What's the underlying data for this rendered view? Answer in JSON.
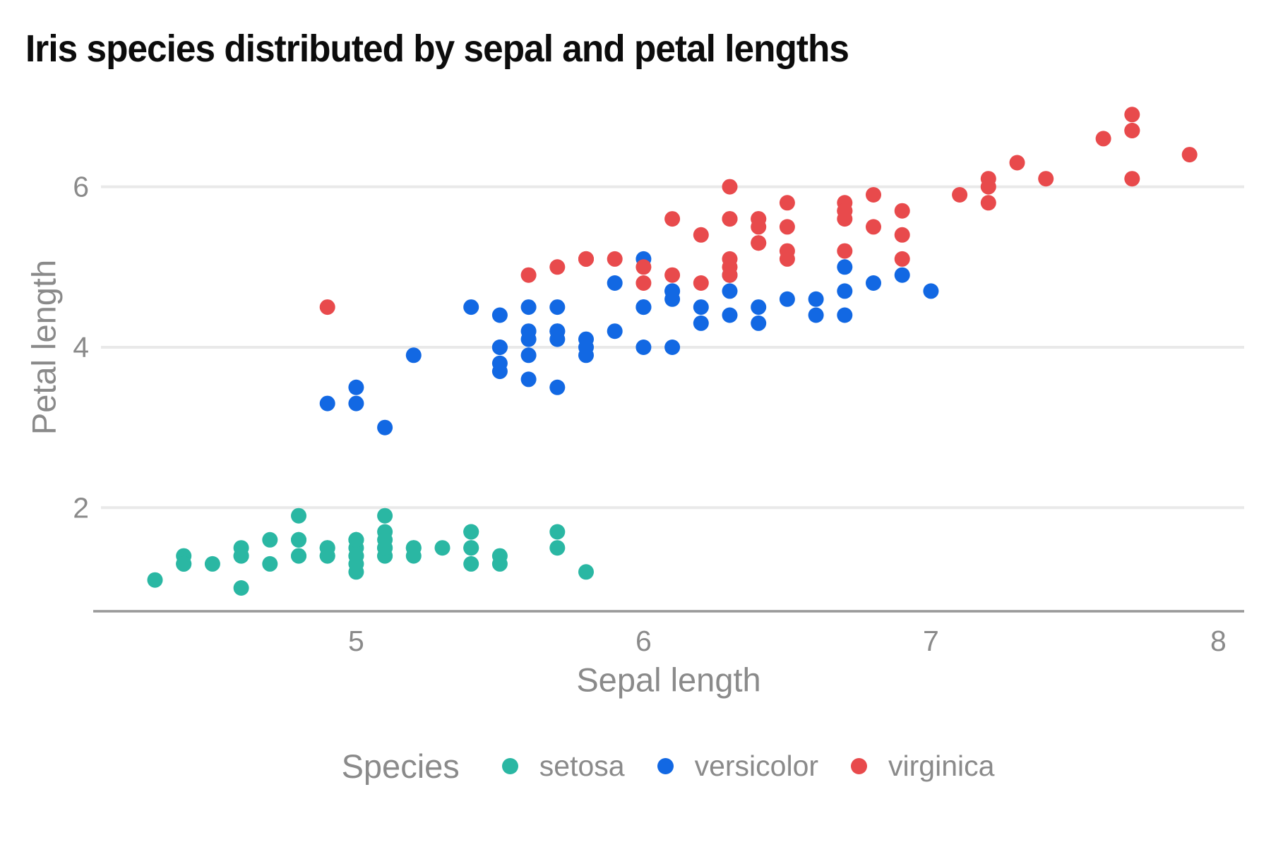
{
  "chart": {
    "title": "Iris species distributed by sepal and petal lengths",
    "xlabel": "Sepal length",
    "ylabel": "Petal length",
    "legend_title": "Species"
  },
  "colors": {
    "background": "#ffffff",
    "title_text": "#0c0c0c",
    "axis_text": "#8a8a8a",
    "gridline": "#e9e9e9",
    "axis_line": "#999999",
    "setosa": "#2ab7a3",
    "versicolor": "#1268e3",
    "virginica": "#e84a4c"
  },
  "chart_data": {
    "type": "scatter",
    "title": "Iris species distributed by sepal and petal lengths",
    "xlabel": "Sepal length",
    "ylabel": "Petal length",
    "x_ticks": [
      5,
      6,
      7,
      8
    ],
    "y_ticks": [
      2,
      4,
      6
    ],
    "xlim": [
      4.08,
      8.09
    ],
    "ylim": [
      0.71,
      7.14
    ],
    "grid": "horizontal-only",
    "legend_position": "bottom-center",
    "legend_title": "Species",
    "series": [
      {
        "name": "setosa",
        "color": "#2ab7a3",
        "points": [
          [
            5.1,
            1.4
          ],
          [
            4.9,
            1.4
          ],
          [
            4.7,
            1.3
          ],
          [
            4.6,
            1.5
          ],
          [
            5.0,
            1.4
          ],
          [
            5.4,
            1.7
          ],
          [
            4.6,
            1.4
          ],
          [
            5.0,
            1.5
          ],
          [
            4.4,
            1.4
          ],
          [
            4.9,
            1.5
          ],
          [
            5.4,
            1.5
          ],
          [
            4.8,
            1.6
          ],
          [
            4.8,
            1.4
          ],
          [
            4.3,
            1.1
          ],
          [
            5.8,
            1.2
          ],
          [
            5.7,
            1.5
          ],
          [
            5.4,
            1.3
          ],
          [
            5.1,
            1.4
          ],
          [
            5.7,
            1.7
          ],
          [
            5.1,
            1.5
          ],
          [
            5.4,
            1.7
          ],
          [
            5.1,
            1.5
          ],
          [
            4.6,
            1.0
          ],
          [
            5.1,
            1.7
          ],
          [
            4.8,
            1.9
          ],
          [
            5.0,
            1.6
          ],
          [
            5.0,
            1.6
          ],
          [
            5.2,
            1.5
          ],
          [
            5.2,
            1.4
          ],
          [
            4.7,
            1.6
          ],
          [
            4.8,
            1.6
          ],
          [
            5.4,
            1.5
          ],
          [
            5.2,
            1.5
          ],
          [
            5.5,
            1.4
          ],
          [
            4.9,
            1.5
          ],
          [
            5.0,
            1.2
          ],
          [
            5.5,
            1.3
          ],
          [
            4.9,
            1.4
          ],
          [
            4.4,
            1.3
          ],
          [
            5.1,
            1.5
          ],
          [
            5.0,
            1.3
          ],
          [
            4.5,
            1.3
          ],
          [
            4.4,
            1.3
          ],
          [
            5.0,
            1.6
          ],
          [
            5.1,
            1.9
          ],
          [
            4.8,
            1.4
          ],
          [
            5.1,
            1.6
          ],
          [
            4.6,
            1.4
          ],
          [
            5.3,
            1.5
          ],
          [
            5.0,
            1.4
          ]
        ]
      },
      {
        "name": "versicolor",
        "color": "#1268e3",
        "points": [
          [
            7.0,
            4.7
          ],
          [
            6.4,
            4.5
          ],
          [
            6.9,
            4.9
          ],
          [
            5.5,
            4.0
          ],
          [
            6.5,
            4.6
          ],
          [
            5.7,
            4.5
          ],
          [
            6.3,
            4.7
          ],
          [
            4.9,
            3.3
          ],
          [
            6.6,
            4.6
          ],
          [
            5.2,
            3.9
          ],
          [
            5.0,
            3.5
          ],
          [
            5.9,
            4.2
          ],
          [
            6.0,
            4.0
          ],
          [
            6.1,
            4.7
          ],
          [
            5.6,
            3.6
          ],
          [
            6.7,
            4.4
          ],
          [
            5.6,
            4.5
          ],
          [
            5.8,
            4.1
          ],
          [
            6.2,
            4.5
          ],
          [
            5.6,
            3.9
          ],
          [
            5.9,
            4.8
          ],
          [
            6.1,
            4.0
          ],
          [
            6.3,
            4.9
          ],
          [
            6.1,
            4.7
          ],
          [
            6.4,
            4.3
          ],
          [
            6.6,
            4.4
          ],
          [
            6.8,
            4.8
          ],
          [
            6.7,
            5.0
          ],
          [
            6.0,
            4.5
          ],
          [
            5.7,
            3.5
          ],
          [
            5.5,
            3.8
          ],
          [
            5.5,
            3.7
          ],
          [
            5.8,
            3.9
          ],
          [
            6.0,
            5.1
          ],
          [
            5.4,
            4.5
          ],
          [
            6.0,
            4.5
          ],
          [
            6.7,
            4.7
          ],
          [
            6.3,
            4.4
          ],
          [
            5.6,
            4.1
          ],
          [
            5.5,
            4.0
          ],
          [
            5.5,
            4.4
          ],
          [
            6.1,
            4.6
          ],
          [
            5.8,
            4.0
          ],
          [
            5.0,
            3.3
          ],
          [
            5.6,
            4.2
          ],
          [
            5.7,
            4.2
          ],
          [
            5.7,
            4.2
          ],
          [
            6.2,
            4.3
          ],
          [
            5.1,
            3.0
          ],
          [
            5.7,
            4.1
          ]
        ]
      },
      {
        "name": "virginica",
        "color": "#e84a4c",
        "points": [
          [
            6.3,
            6.0
          ],
          [
            5.8,
            5.1
          ],
          [
            7.1,
            5.9
          ],
          [
            6.3,
            5.6
          ],
          [
            6.5,
            5.8
          ],
          [
            7.6,
            6.6
          ],
          [
            4.9,
            4.5
          ],
          [
            7.3,
            6.3
          ],
          [
            6.7,
            5.8
          ],
          [
            7.2,
            6.1
          ],
          [
            6.5,
            5.1
          ],
          [
            6.4,
            5.3
          ],
          [
            6.8,
            5.5
          ],
          [
            5.7,
            5.0
          ],
          [
            5.8,
            5.1
          ],
          [
            6.4,
            5.3
          ],
          [
            6.5,
            5.5
          ],
          [
            7.7,
            6.7
          ],
          [
            7.7,
            6.9
          ],
          [
            6.0,
            5.0
          ],
          [
            6.9,
            5.7
          ],
          [
            5.6,
            4.9
          ],
          [
            7.7,
            6.7
          ],
          [
            6.3,
            4.9
          ],
          [
            6.7,
            5.7
          ],
          [
            7.2,
            6.0
          ],
          [
            6.2,
            4.8
          ],
          [
            6.1,
            4.9
          ],
          [
            6.4,
            5.6
          ],
          [
            7.2,
            5.8
          ],
          [
            7.4,
            6.1
          ],
          [
            7.9,
            6.4
          ],
          [
            6.4,
            5.6
          ],
          [
            6.3,
            5.1
          ],
          [
            6.1,
            5.6
          ],
          [
            7.7,
            6.1
          ],
          [
            6.3,
            5.6
          ],
          [
            6.4,
            5.5
          ],
          [
            6.0,
            4.8
          ],
          [
            6.9,
            5.4
          ],
          [
            6.7,
            5.6
          ],
          [
            6.9,
            5.1
          ],
          [
            5.8,
            5.1
          ],
          [
            6.8,
            5.9
          ],
          [
            6.7,
            5.7
          ],
          [
            6.7,
            5.2
          ],
          [
            6.3,
            5.0
          ],
          [
            6.5,
            5.2
          ],
          [
            6.2,
            5.4
          ],
          [
            5.9,
            5.1
          ]
        ]
      }
    ]
  }
}
